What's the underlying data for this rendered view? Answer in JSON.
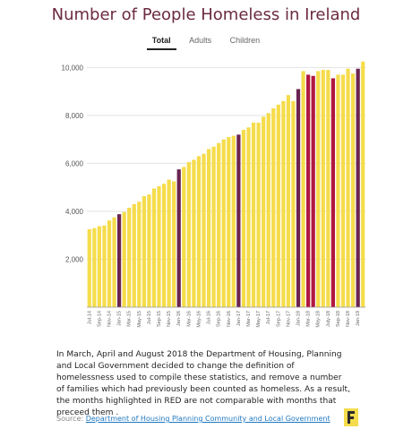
{
  "title": "Number of People Homeless in Ireland",
  "tabs": [
    {
      "label": "Total",
      "active": true
    },
    {
      "label": "Adults",
      "active": false
    },
    {
      "label": "Children",
      "active": false
    }
  ],
  "note": "In March, April and August 2018 the Department of Housing, Planning and Local Government decided to change the definition of homelessness used to compile these statistics, and remove a number of families which had previously been counted as homeless. As a result, the months highlighted in RED are not comparable with months that preceed them .",
  "source": {
    "label": "Source:",
    "link_text": "Department of Housing Planning Community and Local Government"
  },
  "colors": {
    "bar": "#f5dc4b",
    "highlight_january": "#6b2450",
    "highlight_red": "#b0183f",
    "title": "#6b2a3f",
    "logo": "#f5dc4b"
  },
  "chart_data": {
    "type": "bar",
    "ylim": [
      0,
      10500
    ],
    "yticks": [
      2000,
      4000,
      6000,
      8000,
      10000
    ],
    "ytick_labels": [
      "2,000",
      "4,000",
      "6,000",
      "8,000",
      "10,000"
    ],
    "grid": "horizontal",
    "x_tick_labels": [
      "Jul-14",
      "Sep-14",
      "Nov-14",
      "Jan-15",
      "Mar-15",
      "May-15",
      "Jul-15",
      "Sep-15",
      "Nov-15",
      "Jan-16",
      "Mar-16",
      "May-16",
      "Jul-16",
      "Sep-16",
      "Nov-16",
      "Jan-17",
      "Mar-17",
      "May-17",
      "Jul-17",
      "Sep-17",
      "Nov-17",
      "Jan-18",
      "Mar-18",
      "May-18",
      "July-18",
      "Sep-18",
      "Nov-18",
      "Jan-19"
    ],
    "categories": [
      "Jul-14",
      "Aug-14",
      "Sep-14",
      "Oct-14",
      "Nov-14",
      "Dec-14",
      "Jan-15",
      "Feb-15",
      "Mar-15",
      "Apr-15",
      "May-15",
      "Jun-15",
      "Jul-15",
      "Aug-15",
      "Sep-15",
      "Oct-15",
      "Nov-15",
      "Dec-15",
      "Jan-16",
      "Feb-16",
      "Mar-16",
      "Apr-16",
      "May-16",
      "Jun-16",
      "Jul-16",
      "Aug-16",
      "Sep-16",
      "Oct-16",
      "Nov-16",
      "Dec-16",
      "Jan-17",
      "Feb-17",
      "Mar-17",
      "Apr-17",
      "May-17",
      "Jun-17",
      "Jul-17",
      "Aug-17",
      "Sep-17",
      "Oct-17",
      "Nov-17",
      "Dec-17",
      "Jan-18",
      "Feb-18",
      "Mar-18",
      "Apr-18",
      "May-18",
      "Jun-18",
      "Jul-18",
      "Aug-18",
      "Sep-18",
      "Oct-18",
      "Nov-18",
      "Dec-18",
      "Jan-19",
      "Feb-19"
    ],
    "values": [
      3250,
      3300,
      3380,
      3410,
      3620,
      3750,
      3880,
      3970,
      4150,
      4300,
      4400,
      4630,
      4700,
      4950,
      5050,
      5150,
      5320,
      5250,
      5750,
      5850,
      6050,
      6150,
      6300,
      6400,
      6600,
      6700,
      6850,
      7000,
      7100,
      7150,
      7200,
      7400,
      7500,
      7700,
      7700,
      7950,
      8100,
      8300,
      8450,
      8600,
      8850,
      8600,
      9100,
      9850,
      9700,
      9650,
      9850,
      9900,
      9900,
      9550,
      9700,
      9700,
      9950,
      9750,
      9950,
      10250
    ],
    "highlight_red_months": [
      "Mar-18",
      "Apr-18",
      "Aug-18"
    ],
    "highlight_january_months": [
      "Jan-15",
      "Jan-16",
      "Jan-17",
      "Jan-18",
      "Jan-19"
    ]
  }
}
